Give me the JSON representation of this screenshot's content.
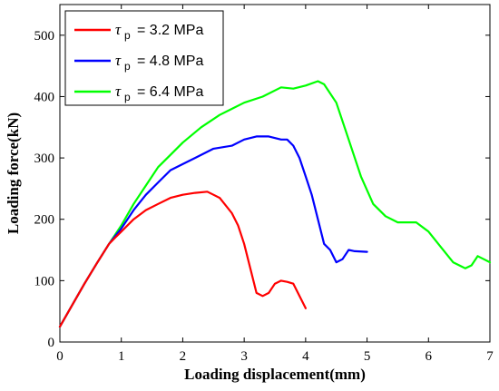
{
  "chart_data": {
    "type": "line",
    "xlabel": "Loading displacement(mm)",
    "ylabel": "Loading force(kN)",
    "xlim": [
      0,
      7
    ],
    "ylim": [
      0,
      550
    ],
    "xticks": [
      0,
      1,
      2,
      3,
      4,
      5,
      6,
      7
    ],
    "yticks": [
      0,
      100,
      200,
      300,
      400,
      500
    ],
    "xtick_labels": [
      "0",
      "1",
      "2",
      "3",
      "4",
      "5",
      "6",
      "7"
    ],
    "ytick_labels": [
      "0",
      "100",
      "200",
      "300",
      "400",
      "500"
    ],
    "grid": false,
    "legend_position": "top-left",
    "series": [
      {
        "name": "τp = 3.2 MPa",
        "symbol": "τ",
        "subscript": "p",
        "value_text": "= 3.2 MPa",
        "color": "#ff0000",
        "x": [
          0,
          0.2,
          0.4,
          0.6,
          0.8,
          0.9,
          1.0,
          1.2,
          1.4,
          1.6,
          1.8,
          2.0,
          2.2,
          2.4,
          2.5,
          2.6,
          2.8,
          2.9,
          3.0,
          3.1,
          3.2,
          3.3,
          3.4,
          3.5,
          3.6,
          3.7,
          3.8,
          3.9,
          4.0
        ],
        "y": [
          25,
          60,
          95,
          128,
          160,
          170,
          180,
          200,
          215,
          225,
          235,
          240,
          243,
          245,
          240,
          235,
          210,
          190,
          160,
          120,
          80,
          75,
          80,
          95,
          100,
          98,
          95,
          75,
          55
        ]
      },
      {
        "name": "τp = 4.8 MPa",
        "symbol": "τ",
        "subscript": "p",
        "value_text": "= 4.8 MPa",
        "color": "#0000ff",
        "x": [
          0,
          0.2,
          0.4,
          0.6,
          0.8,
          1.0,
          1.2,
          1.4,
          1.6,
          1.8,
          2.0,
          2.2,
          2.5,
          2.8,
          3.0,
          3.2,
          3.4,
          3.6,
          3.7,
          3.8,
          3.9,
          4.0,
          4.1,
          4.2,
          4.3,
          4.4,
          4.5,
          4.6,
          4.7,
          4.8,
          5.0
        ],
        "y": [
          25,
          60,
          95,
          128,
          160,
          185,
          215,
          240,
          260,
          280,
          290,
          300,
          315,
          320,
          330,
          335,
          335,
          330,
          330,
          320,
          300,
          270,
          240,
          200,
          160,
          150,
          130,
          135,
          150,
          148,
          147
        ]
      },
      {
        "name": "τp = 6.4 MPa",
        "symbol": "τ",
        "subscript": "p",
        "value_text": "= 6.4 MPa",
        "color": "#00ff00",
        "x": [
          0,
          0.2,
          0.4,
          0.6,
          0.8,
          1.0,
          1.2,
          1.4,
          1.6,
          1.8,
          2.0,
          2.3,
          2.6,
          3.0,
          3.3,
          3.6,
          3.8,
          4.0,
          4.2,
          4.3,
          4.5,
          4.7,
          4.9,
          5.1,
          5.3,
          5.5,
          5.7,
          5.8,
          6.0,
          6.2,
          6.4,
          6.6,
          6.7,
          6.8,
          6.9,
          7.0
        ],
        "y": [
          25,
          60,
          95,
          128,
          160,
          190,
          225,
          255,
          285,
          305,
          325,
          350,
          370,
          390,
          400,
          415,
          413,
          418,
          425,
          420,
          390,
          330,
          270,
          225,
          205,
          195,
          195,
          195,
          180,
          155,
          130,
          120,
          125,
          140,
          135,
          130
        ]
      }
    ]
  }
}
